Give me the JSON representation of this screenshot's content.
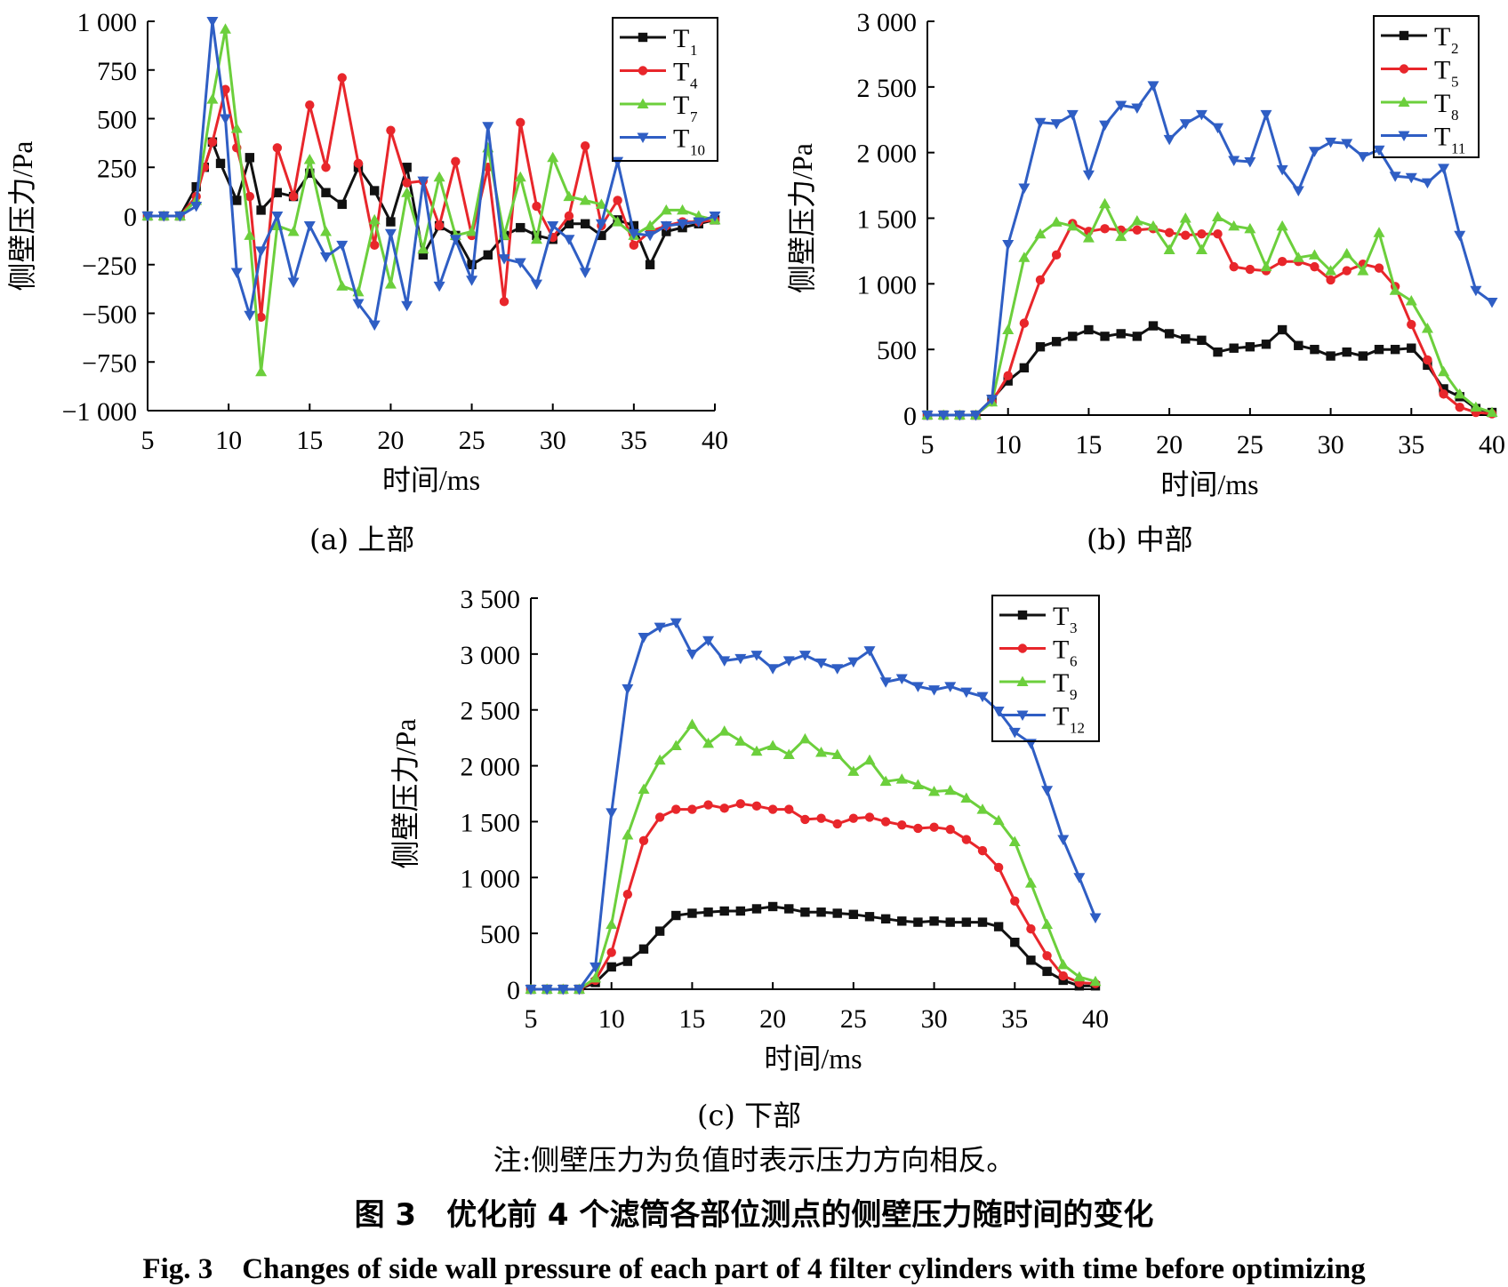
{
  "figure": {
    "note": "注:侧壁压力为负值时表示压力方向相反。",
    "title_cn": "图 3　优化前 4 个滤筒各部位测点的侧壁压力随时间的变化",
    "title_en": "Fig. 3　Changes of side wall pressure of each part of 4 filter cylinders with time before optimizing"
  },
  "colors": {
    "black": "#111111",
    "red": "#e8262b",
    "green": "#6ccf3c",
    "blue": "#2f5ec4"
  },
  "chart_data": [
    {
      "id": "a",
      "type": "line",
      "caption": "(a) 上部",
      "xlabel": "时间/ms",
      "ylabel": "侧壁压力/Pa",
      "xlim": [
        5,
        40
      ],
      "ylim": [
        -1000,
        1000
      ],
      "xticks": [
        5,
        10,
        15,
        20,
        25,
        30,
        35,
        40
      ],
      "yticks": [
        -1000,
        -750,
        -500,
        -250,
        0,
        250,
        500,
        750,
        1000
      ],
      "ytick_labels": [
        "−1 000",
        "−750",
        "−500",
        "−250",
        "0",
        "250",
        "500",
        "750",
        "1 000"
      ],
      "legend_position": "top-right",
      "series": [
        {
          "name": "T",
          "sub": "1",
          "color": "black",
          "marker": "square",
          "x": [
            5,
            6,
            7,
            8,
            8.5,
            9,
            9.5,
            10.5,
            11.3,
            12,
            13,
            14,
            15,
            16,
            17,
            18,
            19,
            20,
            21,
            22,
            23,
            24,
            25,
            26,
            27,
            28,
            29,
            30,
            31,
            32,
            33,
            34,
            35,
            36,
            37,
            38,
            39,
            40
          ],
          "y": [
            0,
            0,
            0,
            150,
            250,
            380,
            270,
            80,
            300,
            30,
            120,
            100,
            220,
            120,
            60,
            250,
            130,
            -30,
            250,
            -200,
            -50,
            -100,
            -250,
            -200,
            -100,
            -60,
            -100,
            -120,
            -40,
            -40,
            -100,
            -20,
            -50,
            -250,
            -80,
            -60,
            -40,
            -20
          ]
        },
        {
          "name": "T",
          "sub": "4",
          "color": "red",
          "marker": "circle",
          "x": [
            5,
            6,
            7,
            8,
            8.5,
            9,
            9.8,
            10.5,
            11.3,
            12,
            13,
            14,
            15,
            16,
            17,
            18,
            19,
            20,
            21,
            22,
            23,
            24,
            25,
            26,
            27,
            28,
            29,
            30,
            31,
            32,
            33,
            34,
            35,
            36,
            37,
            38,
            39,
            40
          ],
          "y": [
            0,
            0,
            0,
            100,
            250,
            380,
            650,
            350,
            100,
            -520,
            350,
            100,
            570,
            250,
            710,
            270,
            -150,
            440,
            170,
            180,
            -50,
            280,
            -100,
            250,
            -440,
            480,
            50,
            -110,
            0,
            360,
            -50,
            80,
            -150,
            -80,
            -50,
            -30,
            -30,
            -20
          ]
        },
        {
          "name": "T",
          "sub": "7",
          "color": "green",
          "marker": "triangle-up",
          "x": [
            5,
            6,
            7,
            8,
            9,
            9.8,
            10.5,
            11.3,
            12,
            13,
            14,
            15,
            16,
            17,
            18,
            19,
            20,
            21,
            22,
            23,
            24,
            25,
            26,
            27,
            28,
            29,
            30,
            31,
            32,
            33,
            34,
            35,
            36,
            37,
            38,
            39,
            40
          ],
          "y": [
            0,
            0,
            0,
            80,
            600,
            960,
            450,
            -100,
            -800,
            -50,
            -80,
            290,
            -80,
            -360,
            -390,
            -20,
            -350,
            120,
            -170,
            200,
            -100,
            -80,
            350,
            -100,
            200,
            -120,
            300,
            100,
            80,
            60,
            -30,
            -100,
            -50,
            30,
            30,
            0,
            -20
          ]
        },
        {
          "name": "T",
          "sub": "10",
          "color": "blue",
          "marker": "triangle-down",
          "x": [
            5,
            6,
            7,
            8,
            9,
            9.8,
            10.5,
            11.3,
            12,
            13,
            14,
            15,
            16,
            17,
            18,
            19,
            20,
            21,
            22,
            23,
            24,
            25,
            26,
            27,
            28,
            29,
            30,
            31,
            32,
            33,
            34,
            35,
            36,
            37,
            38,
            39,
            40
          ],
          "y": [
            0,
            0,
            0,
            50,
            1000,
            500,
            -290,
            -510,
            -180,
            0,
            -340,
            -50,
            -210,
            -150,
            -450,
            -560,
            -90,
            -460,
            180,
            -360,
            -120,
            -330,
            460,
            -220,
            -240,
            -350,
            -50,
            -120,
            -290,
            -40,
            280,
            -90,
            -100,
            -50,
            -40,
            -30,
            0
          ]
        }
      ]
    },
    {
      "id": "b",
      "type": "line",
      "caption": "(b) 中部",
      "xlabel": "时间/ms",
      "ylabel": "侧壁压力/Pa",
      "xlim": [
        5,
        40
      ],
      "ylim": [
        0,
        3000
      ],
      "xticks": [
        5,
        10,
        15,
        20,
        25,
        30,
        35,
        40
      ],
      "yticks": [
        0,
        500,
        1000,
        1500,
        2000,
        2500,
        3000
      ],
      "ytick_labels": [
        "0",
        "500",
        "1 000",
        "1 500",
        "2 000",
        "2 500",
        "3 000"
      ],
      "legend_position": "top-right",
      "series": [
        {
          "name": "T",
          "sub": "2",
          "color": "black",
          "marker": "square",
          "x": [
            5,
            6,
            7,
            8,
            9,
            10,
            11,
            12,
            13,
            14,
            15,
            16,
            17,
            18,
            19,
            20,
            21,
            22,
            23,
            24,
            25,
            26,
            27,
            28,
            29,
            30,
            31,
            32,
            33,
            34,
            35,
            36,
            37,
            38,
            39,
            40
          ],
          "y": [
            0,
            0,
            0,
            0,
            120,
            260,
            360,
            520,
            560,
            600,
            650,
            600,
            620,
            600,
            680,
            620,
            580,
            570,
            480,
            510,
            520,
            540,
            650,
            530,
            500,
            450,
            480,
            450,
            500,
            500,
            510,
            380,
            200,
            140,
            50,
            20
          ]
        },
        {
          "name": "T",
          "sub": "5",
          "color": "red",
          "marker": "circle",
          "x": [
            5,
            6,
            7,
            8,
            9,
            10,
            11,
            12,
            13,
            14,
            15,
            16,
            17,
            18,
            19,
            20,
            21,
            22,
            23,
            24,
            25,
            26,
            27,
            28,
            29,
            30,
            31,
            32,
            33,
            34,
            35,
            36,
            37,
            38,
            39,
            40
          ],
          "y": [
            0,
            0,
            0,
            0,
            100,
            300,
            700,
            1030,
            1220,
            1460,
            1400,
            1420,
            1410,
            1410,
            1420,
            1390,
            1370,
            1380,
            1380,
            1130,
            1110,
            1100,
            1170,
            1170,
            1130,
            1030,
            1100,
            1150,
            1120,
            980,
            690,
            420,
            160,
            60,
            20,
            10
          ]
        },
        {
          "name": "T",
          "sub": "8",
          "color": "green",
          "marker": "triangle-up",
          "x": [
            5,
            6,
            7,
            8,
            9,
            10,
            11,
            12,
            13,
            14,
            15,
            16,
            17,
            18,
            19,
            20,
            21,
            22,
            23,
            24,
            25,
            26,
            27,
            28,
            29,
            30,
            31,
            32,
            33,
            34,
            35,
            36,
            37,
            38,
            39,
            40
          ],
          "y": [
            0,
            0,
            0,
            0,
            100,
            650,
            1200,
            1380,
            1470,
            1440,
            1350,
            1610,
            1360,
            1480,
            1440,
            1260,
            1500,
            1260,
            1510,
            1440,
            1420,
            1130,
            1440,
            1200,
            1220,
            1100,
            1230,
            1100,
            1390,
            950,
            870,
            660,
            330,
            160,
            60,
            20
          ]
        },
        {
          "name": "T",
          "sub": "11",
          "color": "blue",
          "marker": "triangle-down",
          "x": [
            5,
            6,
            7,
            8,
            9,
            10,
            11,
            12,
            13,
            14,
            15,
            16,
            17,
            18,
            19,
            20,
            21,
            22,
            23,
            24,
            25,
            26,
            27,
            28,
            29,
            30,
            31,
            32,
            33,
            34,
            35,
            36,
            37,
            38,
            39,
            40
          ],
          "y": [
            0,
            0,
            0,
            0,
            120,
            1300,
            1730,
            2230,
            2220,
            2290,
            1830,
            2210,
            2360,
            2340,
            2510,
            2100,
            2220,
            2290,
            2190,
            1940,
            1930,
            2290,
            1870,
            1710,
            2010,
            2080,
            2070,
            1970,
            2020,
            1820,
            1810,
            1770,
            1880,
            1370,
            950,
            860
          ]
        }
      ]
    },
    {
      "id": "c",
      "type": "line",
      "caption": "(c) 下部",
      "xlabel": "时间/ms",
      "ylabel": "侧壁压力/Pa",
      "xlim": [
        5,
        40
      ],
      "ylim": [
        0,
        3500
      ],
      "xticks": [
        5,
        10,
        15,
        20,
        25,
        30,
        35,
        40
      ],
      "yticks": [
        0,
        500,
        1000,
        1500,
        2000,
        2500,
        3000,
        3500
      ],
      "ytick_labels": [
        "0",
        "500",
        "1 000",
        "1 500",
        "2 000",
        "2 500",
        "3 000",
        "3 500"
      ],
      "legend_position": "top-right",
      "series": [
        {
          "name": "T",
          "sub": "3",
          "color": "black",
          "marker": "square",
          "x": [
            5,
            6,
            7,
            8,
            9,
            10,
            11,
            12,
            13,
            14,
            15,
            16,
            17,
            18,
            19,
            20,
            21,
            22,
            23,
            24,
            25,
            26,
            27,
            28,
            29,
            30,
            31,
            32,
            33,
            34,
            35,
            36,
            37,
            38,
            39,
            40
          ],
          "y": [
            0,
            0,
            0,
            0,
            60,
            200,
            250,
            360,
            520,
            660,
            680,
            690,
            700,
            700,
            720,
            740,
            720,
            690,
            690,
            680,
            670,
            650,
            630,
            610,
            600,
            610,
            600,
            600,
            600,
            560,
            420,
            260,
            160,
            80,
            30,
            30
          ]
        },
        {
          "name": "T",
          "sub": "6",
          "color": "red",
          "marker": "circle",
          "x": [
            5,
            6,
            7,
            8,
            9,
            10,
            11,
            12,
            13,
            14,
            15,
            16,
            17,
            18,
            19,
            20,
            21,
            22,
            23,
            24,
            25,
            26,
            27,
            28,
            29,
            30,
            31,
            32,
            33,
            34,
            35,
            36,
            37,
            38,
            39,
            40
          ],
          "y": [
            0,
            0,
            0,
            0,
            80,
            330,
            850,
            1330,
            1540,
            1610,
            1610,
            1650,
            1620,
            1660,
            1640,
            1610,
            1610,
            1520,
            1530,
            1480,
            1530,
            1540,
            1500,
            1470,
            1440,
            1450,
            1430,
            1340,
            1240,
            1090,
            790,
            540,
            300,
            120,
            60,
            50
          ]
        },
        {
          "name": "T",
          "sub": "9",
          "color": "green",
          "marker": "triangle-up",
          "x": [
            5,
            6,
            7,
            8,
            9,
            10,
            11,
            12,
            13,
            14,
            15,
            16,
            17,
            18,
            19,
            20,
            21,
            22,
            23,
            24,
            25,
            26,
            27,
            28,
            29,
            30,
            31,
            32,
            33,
            34,
            35,
            36,
            37,
            38,
            39,
            40
          ],
          "y": [
            0,
            0,
            0,
            0,
            100,
            580,
            1380,
            1790,
            2050,
            2180,
            2370,
            2200,
            2310,
            2220,
            2130,
            2180,
            2100,
            2240,
            2120,
            2100,
            1950,
            2050,
            1860,
            1880,
            1830,
            1770,
            1780,
            1710,
            1610,
            1510,
            1320,
            950,
            580,
            220,
            110,
            70
          ]
        },
        {
          "name": "T",
          "sub": "12",
          "color": "blue",
          "marker": "triangle-down",
          "x": [
            5,
            6,
            7,
            8,
            9,
            10,
            11,
            12,
            13,
            14,
            15,
            16,
            17,
            18,
            19,
            20,
            21,
            22,
            23,
            24,
            25,
            26,
            27,
            28,
            29,
            30,
            31,
            32,
            33,
            34,
            35,
            36,
            37,
            38,
            39,
            40
          ],
          "y": [
            0,
            0,
            0,
            0,
            200,
            1580,
            2690,
            3150,
            3240,
            3280,
            3000,
            3120,
            2940,
            2960,
            2990,
            2870,
            2940,
            2990,
            2920,
            2870,
            2930,
            3030,
            2750,
            2780,
            2710,
            2680,
            2710,
            2660,
            2620,
            2490,
            2300,
            2200,
            1780,
            1340,
            1000,
            640
          ]
        }
      ]
    }
  ]
}
